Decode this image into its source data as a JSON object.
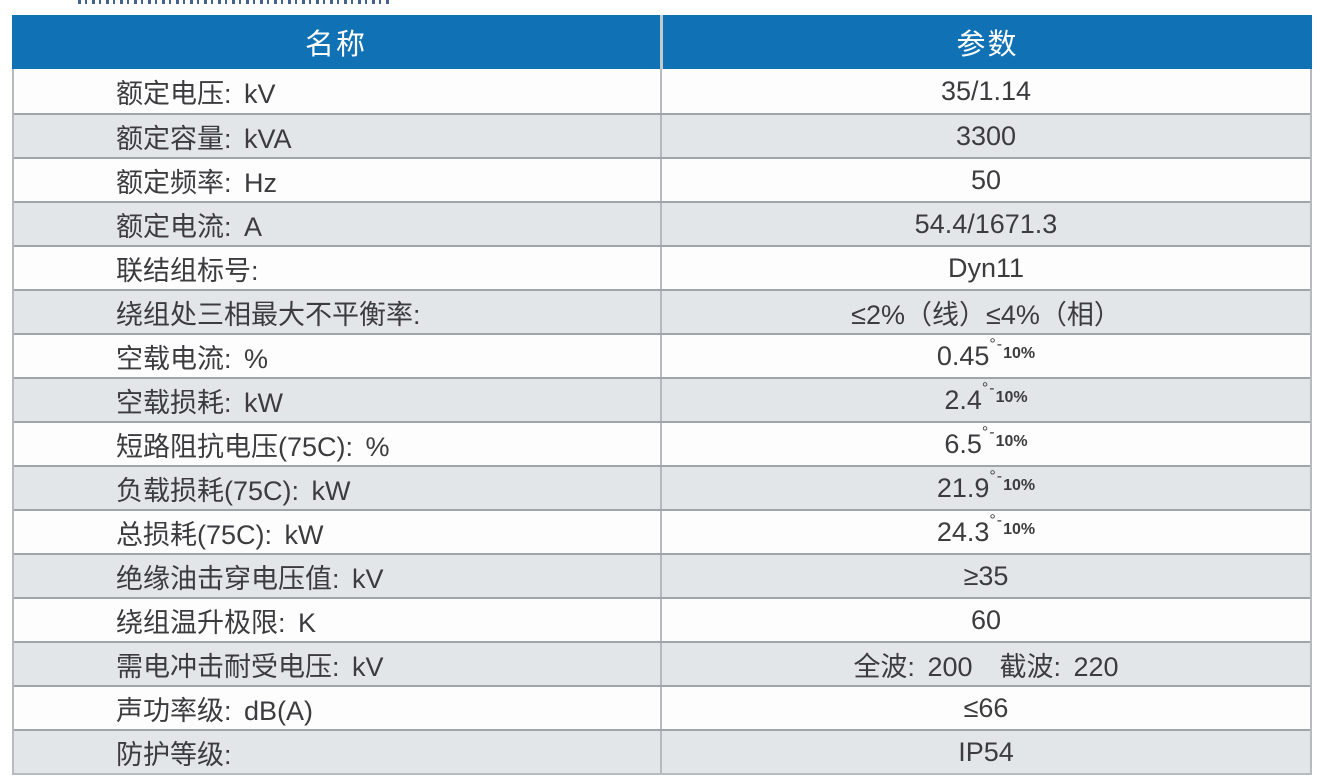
{
  "table": {
    "header": {
      "name_label": "名称",
      "param_label": "参数"
    },
    "rows": [
      {
        "name": "额定电压: kV",
        "value": "35/1.14",
        "alt": false
      },
      {
        "name": "额定容量: kVA",
        "value": "3300",
        "alt": true
      },
      {
        "name": "额定频率: Hz",
        "value": "50",
        "alt": false
      },
      {
        "name": "额定电流: A",
        "value": "54.4/1671.3",
        "alt": true
      },
      {
        "name": "联结组标号:",
        "value": "Dyn11",
        "alt": false
      },
      {
        "name": "绕组处三相最大不平衡率:",
        "value": "≤2%（线）≤4%（相）",
        "alt": true
      },
      {
        "name": "空载电流: %",
        "value": "0.45",
        "sup": "°-",
        "small": "10%",
        "alt": false
      },
      {
        "name": "空载损耗: kW",
        "value": "2.4",
        "sup": "°-",
        "small": "10%",
        "alt": true
      },
      {
        "name": "短路阻抗电压(75C): %",
        "value": "6.5",
        "sup": "°-",
        "small": "10%",
        "alt": false
      },
      {
        "name": "负载损耗(75C): kW",
        "value": "21.9",
        "sup": "°-",
        "small": "10%",
        "alt": true
      },
      {
        "name": "总损耗(75C): kW",
        "value": "24.3",
        "sup": "°-",
        "small": "10%",
        "alt": false
      },
      {
        "name": "绝缘油击穿电压值: kV",
        "value": "≥35",
        "alt": true
      },
      {
        "name": "绕组温升极限: K",
        "value": "60",
        "alt": false
      },
      {
        "name": "需电冲击耐受电压: kV",
        "value": "全波: 200　截波: 220",
        "alt": true
      },
      {
        "name": "声功率级: dB(A)",
        "value": "≤66",
        "alt": false
      },
      {
        "name": "防护等级:",
        "value": "IP54",
        "alt": true
      }
    ],
    "colors": {
      "header_bg": "#1171b5",
      "header_text": "#ffffff",
      "row_bg": "#fdfdfd",
      "row_alt_bg": "#e2e6e9",
      "row_border": "#9fa5ab",
      "column_divider": "#b5bac0",
      "body_text": "#3c3c3f"
    }
  }
}
